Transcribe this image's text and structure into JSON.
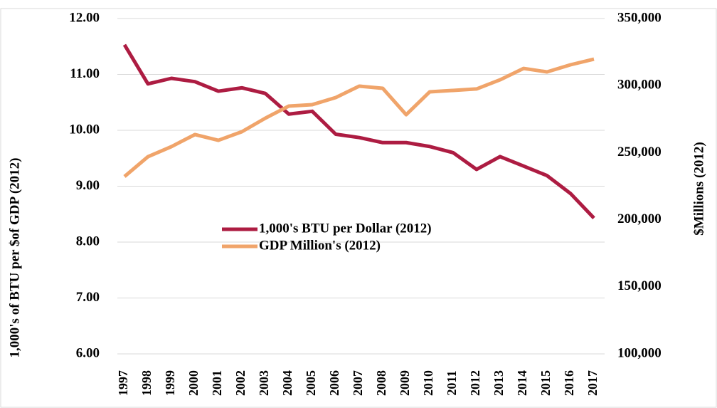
{
  "chart_data": {
    "type": "line",
    "y_label": "1,000's of BTU per $of GDP (2012)",
    "y2_label": "$Millions (2012)",
    "categories": [
      "1997",
      "1998",
      "1999",
      "2000",
      "2001",
      "2002",
      "2003",
      "2004",
      "2005",
      "2006",
      "2007",
      "2008",
      "2009",
      "2010",
      "2011",
      "2012",
      "2013",
      "2014",
      "2015",
      "2016",
      "2017"
    ],
    "series": [
      {
        "name": "1,000's BTU per Dollar (2012)",
        "color": "#ad1c42",
        "values": [
          11.53,
          10.83,
          10.93,
          10.87,
          10.7,
          10.76,
          10.66,
          10.29,
          10.34,
          9.93,
          9.87,
          9.78,
          9.78,
          9.71,
          9.6,
          9.3,
          9.53,
          9.36,
          9.19,
          8.87,
          8.43
        ]
      },
      {
        "name": "GDP Million's (2012)",
        "color": "#f0a46a",
        "axis": "y2",
        "values": [
          232200,
          247000,
          254500,
          263500,
          259200,
          265600,
          275700,
          284700,
          285800,
          291100,
          299600,
          298000,
          278300,
          295300,
          296400,
          297500,
          304300,
          312800,
          310200,
          315500,
          319700
        ]
      }
    ],
    "ylim": [
      6,
      12
    ],
    "yticks": [
      {
        "value": 6,
        "label": "6.00"
      },
      {
        "value": 7,
        "label": "7.00"
      },
      {
        "value": 8,
        "label": "8.00"
      },
      {
        "value": 9,
        "label": "9.00"
      },
      {
        "value": 10,
        "label": "10.00"
      },
      {
        "value": 11,
        "label": "11.00"
      },
      {
        "value": 12,
        "label": "12.00"
      }
    ],
    "y2lim": [
      100000,
      350000
    ],
    "y2ticks": [
      {
        "value": 100000,
        "label": "100,000"
      },
      {
        "value": 150000,
        "label": "150,000"
      },
      {
        "value": 200000,
        "label": "200,000"
      },
      {
        "value": 250000,
        "label": "250,000"
      },
      {
        "value": 300000,
        "label": "300,000"
      },
      {
        "value": 350000,
        "label": "350,000"
      }
    ],
    "grid": true
  }
}
